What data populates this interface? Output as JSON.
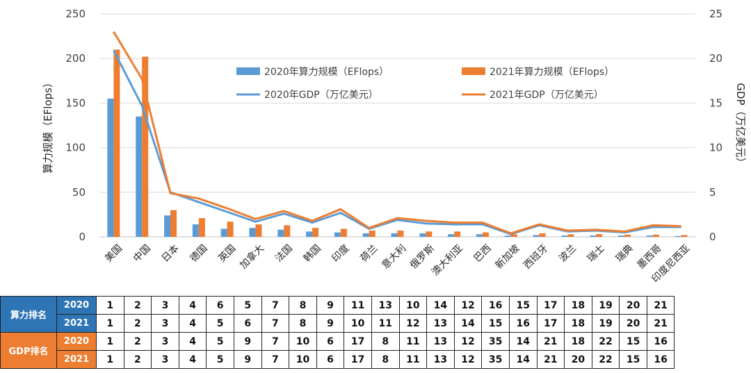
{
  "chart_data": {
    "type": "bar+line",
    "categories": [
      "美国",
      "中国",
      "日本",
      "德国",
      "英国",
      "加拿大",
      "法国",
      "韩国",
      "印度",
      "荷兰",
      "意大利",
      "俄罗斯",
      "澳大利亚",
      "巴西",
      "新加坡",
      "西班牙",
      "波兰",
      "瑞士",
      "瑞典",
      "墨西哥",
      "印度尼西亚"
    ],
    "series": [
      {
        "name": "2020年算力规模（EFlops）",
        "kind": "bar",
        "axis": "left",
        "color": "#5b9bd5",
        "values": [
          155,
          135,
          24,
          14,
          9,
          10,
          8,
          6,
          5,
          4,
          4,
          4,
          3,
          3,
          1.5,
          2,
          1.5,
          1.5,
          1.5,
          1.5,
          1
        ]
      },
      {
        "name": "2021年算力规模（EFlops）",
        "kind": "bar",
        "axis": "left",
        "color": "#ed7d31",
        "values": [
          210,
          202,
          30,
          21,
          17,
          14,
          13,
          10,
          9,
          7,
          7,
          6,
          6,
          5,
          3,
          4,
          3,
          3,
          2.5,
          2.5,
          2
        ]
      },
      {
        "name": "2020年GDP（万亿美元）",
        "kind": "line",
        "axis": "right",
        "color": "#5b9bd5",
        "values": [
          20.9,
          14.7,
          5.0,
          3.9,
          2.8,
          1.7,
          2.6,
          1.6,
          2.7,
          0.9,
          1.9,
          1.5,
          1.4,
          1.4,
          0.3,
          1.3,
          0.6,
          0.7,
          0.5,
          1.1,
          1.1
        ]
      },
      {
        "name": "2021年GDP（万亿美元）",
        "kind": "line",
        "axis": "right",
        "color": "#ed7d31",
        "values": [
          23.0,
          17.7,
          4.9,
          4.3,
          3.2,
          2.0,
          2.9,
          1.8,
          3.1,
          1.0,
          2.1,
          1.8,
          1.6,
          1.6,
          0.4,
          1.4,
          0.7,
          0.8,
          0.6,
          1.3,
          1.2
        ]
      }
    ],
    "yleft": {
      "label": "算力规模（EFlops）",
      "lim": [
        0,
        250
      ],
      "ticks": [
        0,
        50,
        100,
        150,
        200,
        250
      ]
    },
    "yright": {
      "label": "GDP（万亿美元）",
      "lim": [
        0,
        25
      ],
      "ticks": [
        0,
        5,
        10,
        15,
        20,
        25
      ]
    },
    "legend": "top-center, inside plot",
    "grid": "horizontal"
  },
  "rank_table": {
    "groups": [
      {
        "label": "算力排名",
        "color": "#2e75b6",
        "rows": [
          {
            "year": "2020",
            "values": [
              "1",
              "2",
              "3",
              "4",
              "6",
              "5",
              "7",
              "8",
              "9",
              "11",
              "13",
              "10",
              "14",
              "12",
              "16",
              "15",
              "17",
              "18",
              "19",
              "20",
              "21"
            ]
          },
          {
            "year": "2021",
            "values": [
              "1",
              "2",
              "3",
              "4",
              "5",
              "6",
              "7",
              "8",
              "9",
              "10",
              "11",
              "12",
              "13",
              "14",
              "15",
              "16",
              "17",
              "18",
              "19",
              "20",
              "21"
            ]
          }
        ]
      },
      {
        "label": "GDP排名",
        "color": "#ed7d31",
        "rows": [
          {
            "year": "2020",
            "values": [
              "1",
              "2",
              "3",
              "4",
              "5",
              "9",
              "7",
              "10",
              "6",
              "17",
              "8",
              "11",
              "13",
              "12",
              "35",
              "14",
              "21",
              "18",
              "22",
              "15",
              "16"
            ]
          },
          {
            "year": "2021",
            "values": [
              "1",
              "2",
              "3",
              "4",
              "5",
              "9",
              "7",
              "10",
              "6",
              "17",
              "8",
              "11",
              "13",
              "12",
              "35",
              "14",
              "21",
              "20",
              "22",
              "15",
              "16"
            ]
          }
        ]
      }
    ]
  }
}
